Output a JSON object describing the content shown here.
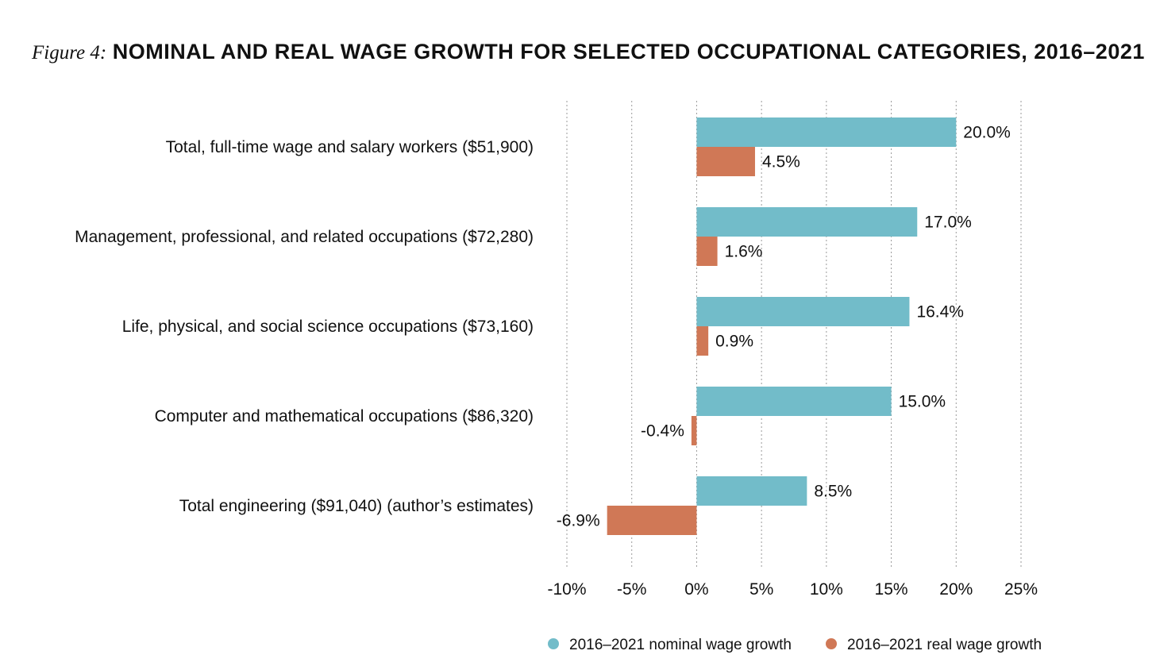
{
  "figure_prefix": "Figure 4:",
  "figure_title": "NOMINAL AND REAL WAGE GROWTH FOR SELECTED OCCUPATIONAL CATEGORIES, 2016–2021",
  "chart_data": {
    "type": "bar",
    "orientation": "horizontal",
    "categories": [
      "Total, full-time wage and salary workers ($51,900)",
      "Management, professional, and related occupations ($72,280)",
      "Life, physical, and social science occupations ($73,160)",
      "Computer and mathematical occupations ($86,320)",
      "Total engineering ($91,040) (author’s estimates)"
    ],
    "series": [
      {
        "name": "2016–2021 nominal wage growth",
        "color": "#72bcc9",
        "values": [
          20.0,
          17.0,
          16.4,
          15.0,
          8.5
        ],
        "labels": [
          "20.0%",
          "17.0%",
          "16.4%",
          "15.0%",
          "8.5%"
        ]
      },
      {
        "name": "2016–2021 real wage growth",
        "color": "#d07856",
        "values": [
          4.5,
          1.6,
          0.9,
          -0.4,
          -6.9
        ],
        "labels": [
          "4.5%",
          "1.6%",
          "0.9%",
          "-0.4%",
          "-6.9%"
        ]
      }
    ],
    "xlim": [
      -10,
      25
    ],
    "xticks": [
      -10,
      -5,
      0,
      5,
      10,
      15,
      20,
      25
    ],
    "xtick_labels": [
      "-10%",
      "-5%",
      "0%",
      "5%",
      "10%",
      "15%",
      "20%",
      "25%"
    ],
    "grid": "vertical-dotted",
    "legend_position": "bottom"
  }
}
